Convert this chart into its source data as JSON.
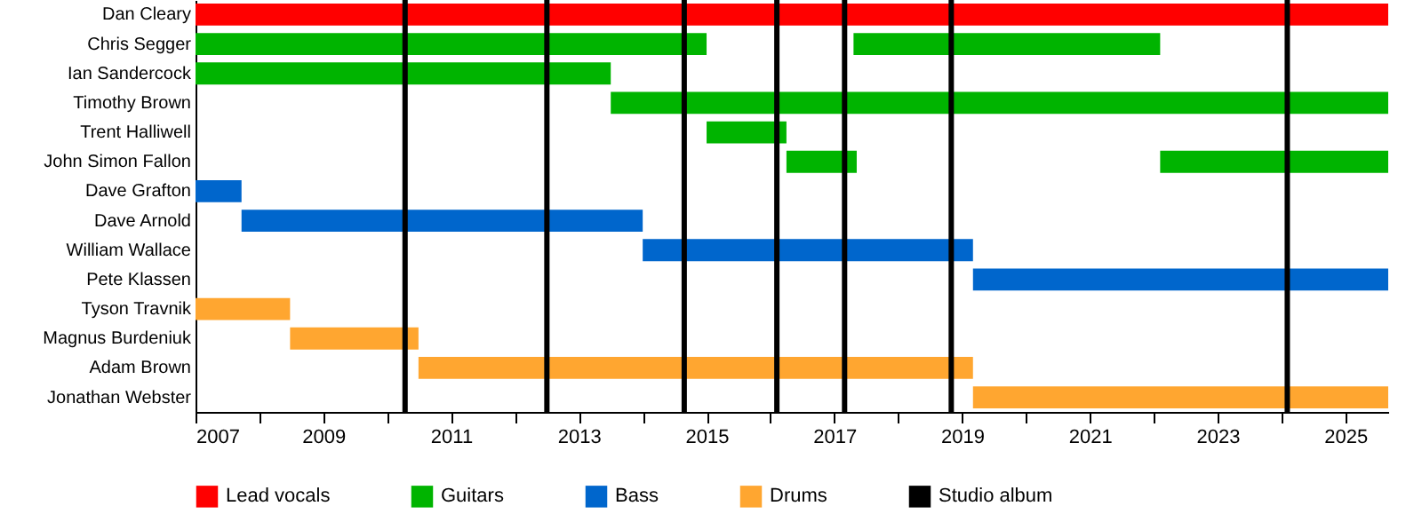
{
  "chart_data": {
    "type": "bar",
    "orientation": "horizontal",
    "legend": "bottom",
    "grid": false,
    "categories": [
      "Dan Cleary",
      "Chris Segger",
      "Ian Sandercock",
      "Timothy Brown",
      "Trent Halliwell",
      "John Simon Fallon",
      "Dave Grafton",
      "Dave Arnold",
      "William Wallace",
      "Pete Klassen",
      "Tyson Travnik",
      "Magnus Burdeniuk",
      "Adam Brown",
      "Jonathan Webster"
    ],
    "xlim": [
      2007,
      2025.67
    ],
    "xticks": [
      2007,
      {
        "value": 2008,
        "label": null
      },
      2009,
      {
        "value": 2010,
        "label": null
      },
      2011,
      {
        "value": 2012,
        "label": null
      },
      2013,
      {
        "value": 2014,
        "label": null
      },
      2015,
      {
        "value": 2016,
        "label": null
      },
      2017,
      {
        "value": 2018,
        "label": null
      },
      2019,
      {
        "value": 2020,
        "label": null
      },
      2021,
      {
        "value": 2022,
        "label": null
      },
      2023,
      {
        "value": 2024,
        "label": null
      },
      2025
    ],
    "series": [
      {
        "name": "Lead vocals",
        "color": "#ff0000",
        "base": [
          2007,
          null,
          null,
          null,
          null,
          null,
          null,
          null,
          null,
          null,
          null,
          null,
          null,
          null
        ],
        "values": [
          18.67,
          null,
          null,
          null,
          null,
          null,
          null,
          null,
          null,
          null,
          null,
          null,
          null,
          null
        ]
      },
      {
        "name": "Guitars",
        "color": "#00b400",
        "base": [
          null,
          2007,
          2007,
          2013.5,
          2015,
          2016.25,
          null,
          null,
          null,
          null,
          null,
          null,
          null,
          null
        ],
        "values": [
          null,
          8,
          6.5,
          12.17,
          1.25,
          1.1,
          null,
          null,
          null,
          null,
          null,
          null,
          null,
          null
        ]
      },
      {
        "color": "#00b400",
        "base": [
          null,
          2017.3,
          null,
          null,
          null,
          2022.1,
          null,
          null,
          null,
          null,
          null,
          null,
          null,
          null
        ],
        "values": [
          null,
          4.8,
          null,
          null,
          null,
          3.57,
          null,
          null,
          null,
          null,
          null,
          null,
          null,
          null
        ]
      },
      {
        "name": "Bass",
        "color": "#0066cc",
        "base": [
          null,
          null,
          null,
          null,
          null,
          null,
          2007,
          2007.72,
          2014,
          2019.17,
          null,
          null,
          null,
          null
        ],
        "values": [
          null,
          null,
          null,
          null,
          null,
          null,
          0.72,
          6.28,
          5.17,
          6.5,
          null,
          null,
          null,
          null
        ]
      },
      {
        "name": "Drums",
        "color": "#ffa630",
        "base": [
          null,
          null,
          null,
          null,
          null,
          null,
          null,
          null,
          null,
          null,
          2007,
          2008.48,
          2010.49,
          2019.17
        ],
        "values": [
          null,
          null,
          null,
          null,
          null,
          null,
          null,
          null,
          null,
          null,
          1.48,
          2.01,
          8.68,
          6.5
        ]
      }
    ],
    "ref_lines": [
      {
        "axis": "x",
        "value": 2010.28,
        "label": "Studio album",
        "color": "#000000"
      },
      {
        "axis": "x",
        "value": 2012.5,
        "color": "#000000"
      },
      {
        "axis": "x",
        "value": 2014.65,
        "color": "#000000"
      },
      {
        "axis": "x",
        "value": 2016.1,
        "color": "#000000"
      },
      {
        "axis": "x",
        "value": 2017.16,
        "color": "#000000"
      },
      {
        "axis": "x",
        "value": 2018.83,
        "color": "#000000"
      },
      {
        "axis": "x",
        "value": 2024.09,
        "color": "#000000"
      }
    ]
  }
}
